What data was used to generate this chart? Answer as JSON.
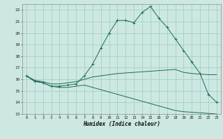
{
  "xlabel": "Humidex (Indice chaleur)",
  "background_color": "#cce8e0",
  "grid_color": "#99ccbf",
  "line_color": "#1a6b5a",
  "xlim": [
    -0.5,
    23.5
  ],
  "ylim": [
    13,
    22.5
  ],
  "yticks": [
    13,
    14,
    15,
    16,
    17,
    18,
    19,
    20,
    21,
    22
  ],
  "xticks": [
    0,
    1,
    2,
    3,
    4,
    5,
    6,
    7,
    8,
    9,
    10,
    11,
    12,
    13,
    14,
    15,
    16,
    17,
    18,
    19,
    20,
    21,
    22,
    23
  ],
  "curve1_x": [
    0,
    1,
    2,
    3,
    4,
    5,
    6,
    7,
    8,
    9,
    10,
    11,
    12,
    13,
    14,
    15,
    16,
    17,
    18,
    19,
    20,
    21,
    22,
    23
  ],
  "curve1_y": [
    16.3,
    15.8,
    15.7,
    15.4,
    15.4,
    15.5,
    15.6,
    16.3,
    17.3,
    18.7,
    20.0,
    21.1,
    21.1,
    20.9,
    21.8,
    22.3,
    21.3,
    20.5,
    19.5,
    18.5,
    17.5,
    16.5,
    14.7,
    14.0
  ],
  "curve2_x": [
    0,
    1,
    2,
    3,
    4,
    5,
    6,
    7,
    8,
    9,
    10,
    11,
    12,
    13,
    14,
    15,
    16,
    17,
    18,
    19,
    20,
    21,
    22,
    23
  ],
  "curve2_y": [
    16.3,
    15.9,
    15.8,
    15.6,
    15.6,
    15.7,
    15.8,
    16.0,
    16.2,
    16.3,
    16.4,
    16.5,
    16.55,
    16.6,
    16.65,
    16.7,
    16.75,
    16.8,
    16.85,
    16.6,
    16.5,
    16.45,
    16.4,
    16.4
  ],
  "curve3_x": [
    0,
    1,
    2,
    3,
    4,
    5,
    6,
    7,
    8,
    9,
    10,
    11,
    12,
    13,
    14,
    15,
    16,
    17,
    18,
    19,
    20,
    21,
    22,
    23
  ],
  "curve3_y": [
    16.3,
    15.9,
    15.7,
    15.4,
    15.3,
    15.3,
    15.4,
    15.5,
    15.3,
    15.1,
    14.9,
    14.7,
    14.5,
    14.3,
    14.1,
    13.9,
    13.7,
    13.5,
    13.3,
    13.2,
    13.15,
    13.1,
    13.05,
    13.0
  ]
}
